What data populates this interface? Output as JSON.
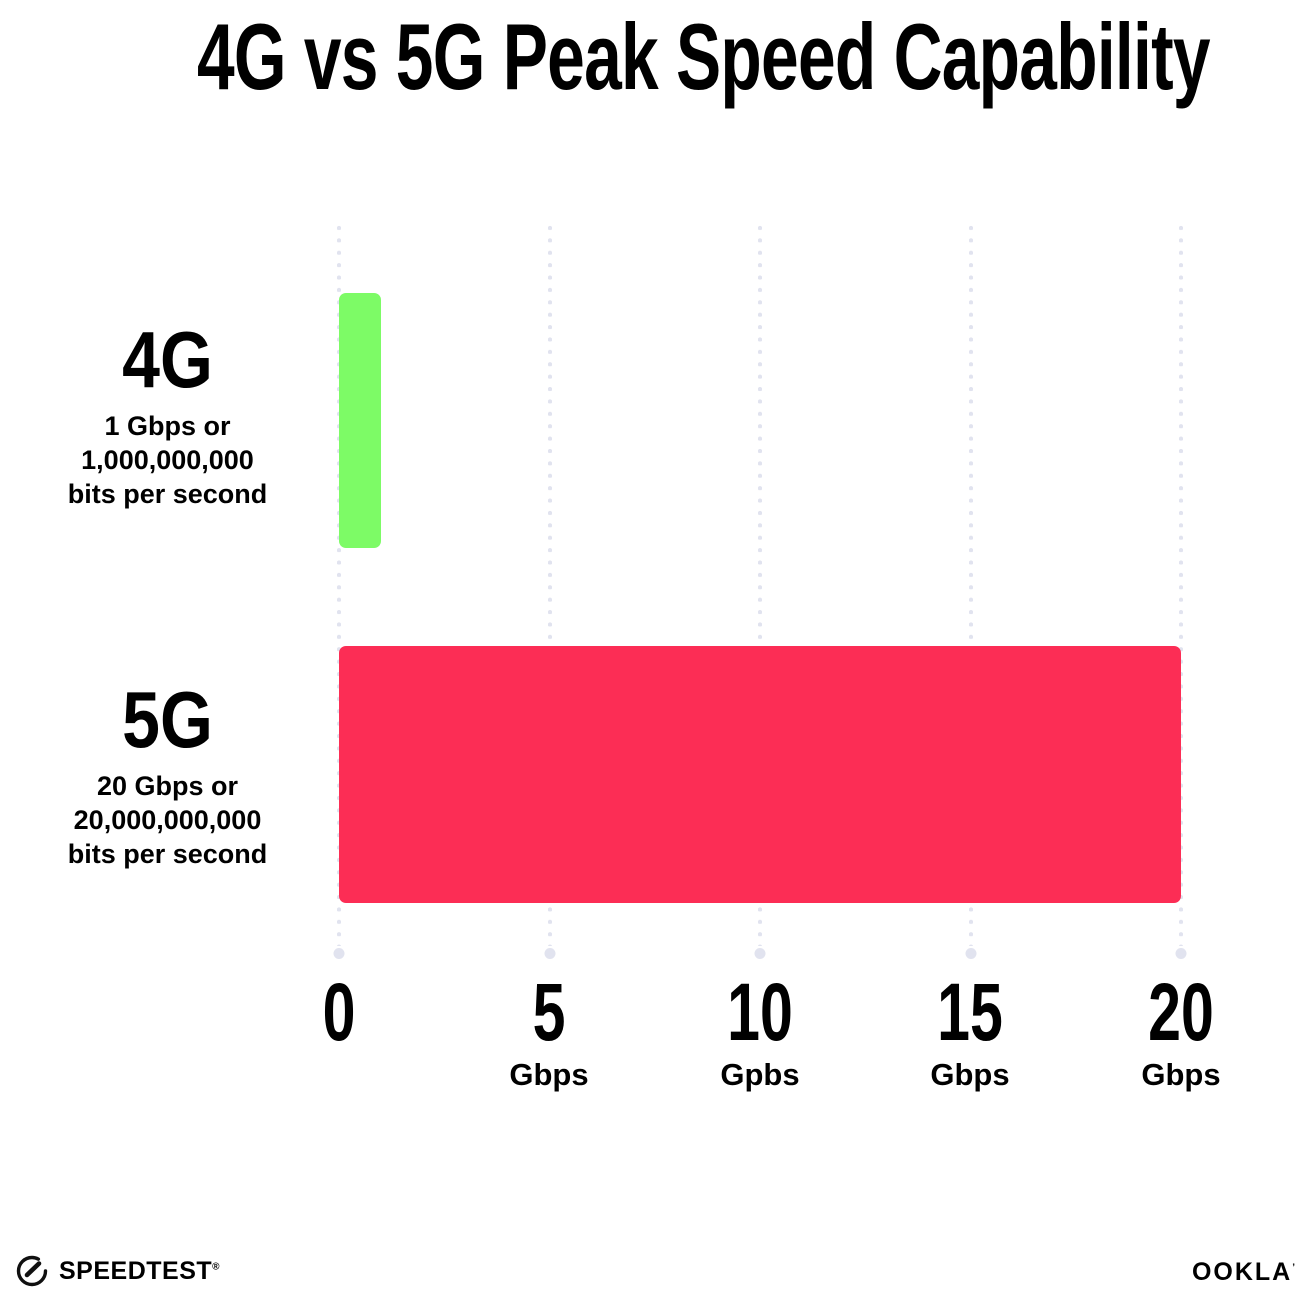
{
  "title": "4G vs 5G Peak Speed Capability",
  "chart_data": {
    "type": "bar",
    "orientation": "horizontal",
    "title": "4G vs 5G Peak Speed Capability",
    "categories": [
      "4G",
      "5G"
    ],
    "values": [
      1,
      20
    ],
    "value_unit": "Gbps",
    "xlim": [
      0,
      20
    ],
    "bar_colors": [
      "#7DFB66",
      "#FC2D55"
    ],
    "grid": "dotted vertical gridlines at each x tick, light lavender dots with larger terminal dot at axis",
    "legend": "none",
    "rows": [
      {
        "name": "4G",
        "value_gbps": 1,
        "sublabel_lines": [
          "1 Gbps or",
          "1,000,000,000",
          "bits per second"
        ]
      },
      {
        "name": "5G",
        "value_gbps": 20,
        "sublabel_lines": [
          "20 Gbps or",
          "20,000,000,000",
          "bits per second"
        ]
      }
    ],
    "x_ticks": [
      {
        "value": 0,
        "label": "0",
        "unit": ""
      },
      {
        "value": 5,
        "label": "5",
        "unit": "Gbps"
      },
      {
        "value": 10,
        "label": "10",
        "unit": "Gpbs"
      },
      {
        "value": 15,
        "label": "15",
        "unit": "Gbps"
      },
      {
        "value": 20,
        "label": "20",
        "unit": "Gbps"
      }
    ],
    "xlabel": "",
    "ylabel": ""
  },
  "footer": {
    "speedtest_wordmark": "SPEEDTEST",
    "speedtest_mark": "®",
    "ookla_wordmark": "OOKLA",
    "ookla_mark": "’"
  },
  "colors": {
    "bar_4g": "#7DFB66",
    "bar_5g": "#FC2D55",
    "grid_dot": "#E1E3EF",
    "text": "#000000",
    "background": "#FFFFFF"
  }
}
